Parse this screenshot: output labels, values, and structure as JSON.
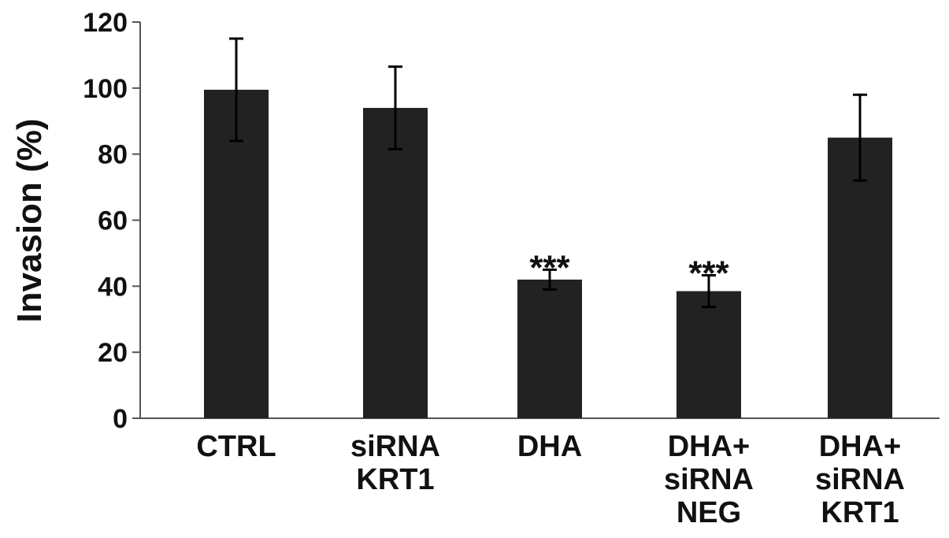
{
  "chart_data": {
    "type": "bar",
    "categories": [
      [
        "CTRL"
      ],
      [
        "siRNA",
        "KRT1"
      ],
      [
        "DHA"
      ],
      [
        "DHA+",
        "siRNA",
        "NEG"
      ],
      [
        "DHA+",
        "siRNA",
        "KRT1"
      ]
    ],
    "values": [
      99.5,
      94,
      42,
      38.5,
      85
    ],
    "errors": [
      15.5,
      12.5,
      3,
      4.8,
      13
    ],
    "significance": [
      "",
      "",
      "***",
      "***",
      ""
    ],
    "ylabel": "Invasion (%)",
    "ylim": [
      0,
      120
    ],
    "yticks": [
      0,
      20,
      40,
      60,
      80,
      100,
      120
    ],
    "grid": false,
    "colors": {
      "bar": "#222222",
      "axis": "#555555",
      "text": "#111111"
    }
  }
}
